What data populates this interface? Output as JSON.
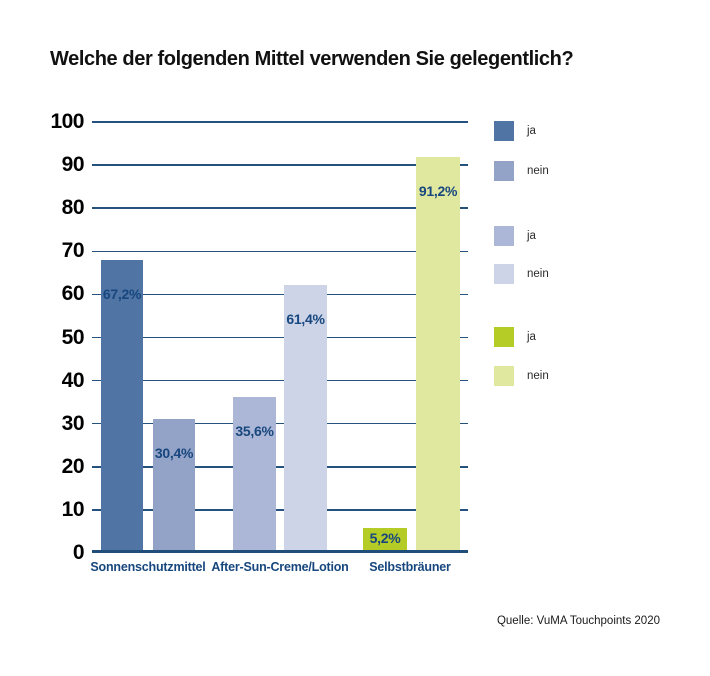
{
  "title": "Welche der folgenden Mittel verwenden Sie gelegentlich?",
  "source": "Quelle: VuMA Touchpoints 2020",
  "colors": {
    "grid": "#24517e",
    "axis": "#1f4e7b",
    "value_label": "#17477e",
    "sonnenschutz_ja": "#5074a4",
    "sonnenschutz_nein": "#93a2c7",
    "aftersun_ja": "#acb6d6",
    "aftersun_nein": "#cdd4e8",
    "selbstbraeuner_ja": "#b5cb26",
    "selbstbraeuner_nein": "#e0e8a0"
  },
  "legend": {
    "items": [
      {
        "label": "ja",
        "color": "#5074a4"
      },
      {
        "label": "nein",
        "color": "#93a2c7"
      },
      {
        "label": "ja",
        "color": "#acb6d6"
      },
      {
        "label": "nein",
        "color": "#cdd4e8"
      },
      {
        "label": "ja",
        "color": "#b5cb26"
      },
      {
        "label": "nein",
        "color": "#e0e8a0"
      }
    ]
  },
  "chart_data": {
    "type": "bar",
    "title": "Welche der folgenden Mittel verwenden Sie gelegentlich?",
    "categories": [
      "Sonnenschutzmittel",
      "After-Sun-Creme/Lotion",
      "Selbstbräuner"
    ],
    "series": [
      {
        "name": "ja",
        "values": [
          67.2,
          35.6,
          5.2
        ]
      },
      {
        "name": "nein",
        "values": [
          30.4,
          61.4,
          91.2
        ]
      }
    ],
    "bars": [
      {
        "category": "Sonnenschutzmittel",
        "series": "ja",
        "value": 67.2,
        "label": "67,2%",
        "color": "#5074a4"
      },
      {
        "category": "Sonnenschutzmittel",
        "series": "nein",
        "value": 30.4,
        "label": "30,4%",
        "color": "#93a2c7"
      },
      {
        "category": "After-Sun-Creme/Lotion",
        "series": "ja",
        "value": 35.6,
        "label": "35,6%",
        "color": "#acb6d6"
      },
      {
        "category": "After-Sun-Creme/Lotion",
        "series": "nein",
        "value": 61.4,
        "label": "61,4%",
        "color": "#cdd4e8"
      },
      {
        "category": "Selbstbräuner",
        "series": "ja",
        "value": 5.2,
        "label": "5,2%",
        "color": "#b5cb26"
      },
      {
        "category": "Selbstbräuner",
        "series": "nein",
        "value": 91.2,
        "label": "91,2%",
        "color": "#e0e8a0"
      }
    ],
    "xlabel": "",
    "ylabel": "",
    "ylim": [
      0,
      100
    ],
    "yticks": [
      0,
      10,
      20,
      30,
      40,
      50,
      60,
      70,
      80,
      90,
      100
    ],
    "grid": true,
    "legend_position": "right"
  }
}
